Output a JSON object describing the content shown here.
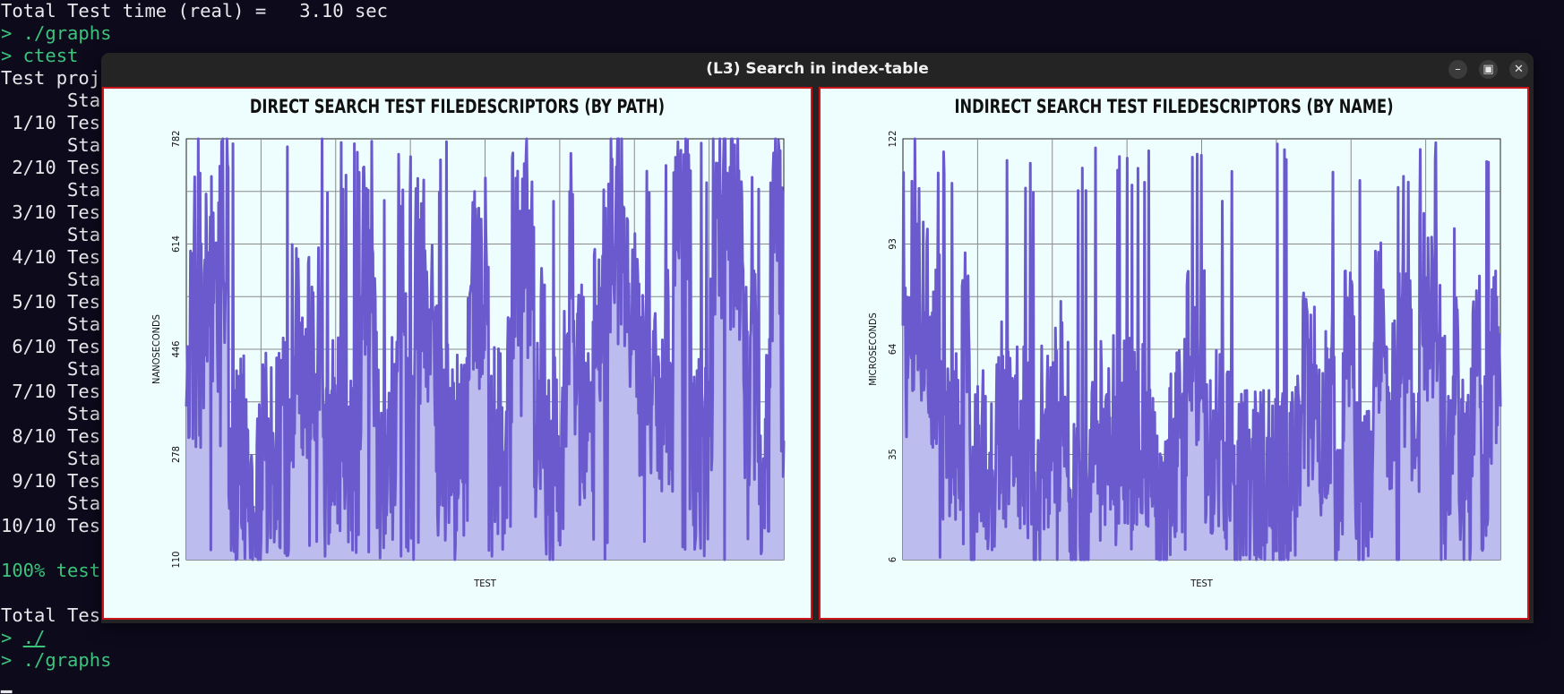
{
  "terminal": {
    "lines": [
      {
        "text": "Total Test time (real) =   3.10 sec",
        "color": "white"
      },
      {
        "text": "> ./graphs",
        "color": "green"
      },
      {
        "text": "> ctest",
        "color": "green"
      },
      {
        "text": "Test proj",
        "color": "white"
      },
      {
        "text": "      Sta",
        "color": "white"
      },
      {
        "text": " 1/10 Tes",
        "color": "white"
      },
      {
        "text": "      Sta",
        "color": "white"
      },
      {
        "text": " 2/10 Tes",
        "color": "white"
      },
      {
        "text": "      Sta",
        "color": "white"
      },
      {
        "text": " 3/10 Tes",
        "color": "white"
      },
      {
        "text": "      Sta",
        "color": "white"
      },
      {
        "text": " 4/10 Tes",
        "color": "white"
      },
      {
        "text": "      Sta",
        "color": "white"
      },
      {
        "text": " 5/10 Tes",
        "color": "white"
      },
      {
        "text": "      Sta",
        "color": "white"
      },
      {
        "text": " 6/10 Tes",
        "color": "white"
      },
      {
        "text": "      Sta",
        "color": "white"
      },
      {
        "text": " 7/10 Tes",
        "color": "white"
      },
      {
        "text": "      Sta",
        "color": "white"
      },
      {
        "text": " 8/10 Tes",
        "color": "white"
      },
      {
        "text": "      Sta",
        "color": "white"
      },
      {
        "text": " 9/10 Tes",
        "color": "white"
      },
      {
        "text": "      Sta",
        "color": "white"
      },
      {
        "text": "10/10 Tes",
        "color": "white"
      },
      {
        "text": "",
        "color": "white"
      },
      {
        "text": "100% test",
        "color": "green"
      },
      {
        "text": "",
        "color": "white"
      },
      {
        "text": "Total Tes",
        "color": "white"
      },
      {
        "text": "> ./",
        "color": "green",
        "underline": "./"
      },
      {
        "text": "> ./graphs",
        "color": "green"
      },
      {
        "text": "▁",
        "color": "white"
      }
    ]
  },
  "window": {
    "title": "(L3) Search in index-table",
    "minimize_icon": "–",
    "maximize_icon": "▣",
    "close_icon": "✕"
  },
  "colors": {
    "panel_bg": "#eefefe",
    "panel_border": "#c8171b",
    "series_stroke": "#6a5acd",
    "series_fill": "#bcbcee",
    "grid": "#8a8a8a"
  },
  "chart_data": [
    {
      "type": "area",
      "title": "DIRECT SEARCH TEST FILEDESCRIPTORS (BY PATH)",
      "xlabel": "TEST",
      "ylabel": "NANOSECONDS",
      "yticks": [
        "110",
        "278",
        "446",
        "614",
        "782"
      ],
      "ylim": [
        110,
        782
      ],
      "x_count": 1000,
      "y_range_observed": [
        110,
        782
      ],
      "typical_band": [
        260,
        660
      ],
      "grid": true
    },
    {
      "type": "area",
      "title": "INDIRECT SEARCH TEST FILEDESCRIPTORS (BY NAME)",
      "xlabel": "TEST",
      "ylabel": "MICROSECONDS",
      "yticks": [
        "6",
        "35",
        "64",
        "93",
        "122"
      ],
      "ylim": [
        6,
        122
      ],
      "x_count": 1000,
      "y_range_observed": [
        6,
        122
      ],
      "typical_band": [
        15,
        75
      ],
      "grid": true
    }
  ]
}
